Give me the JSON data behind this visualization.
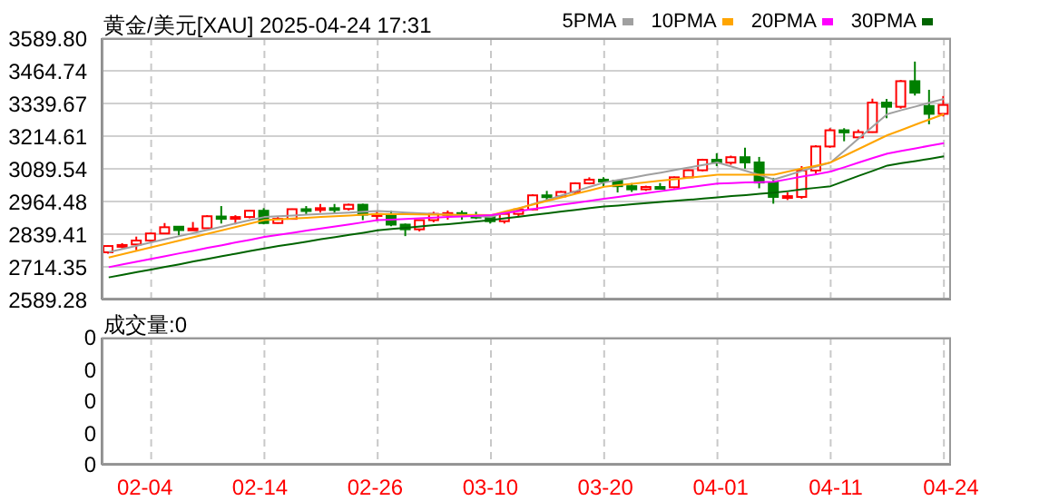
{
  "chart_data": [
    {
      "type": "candlestick",
      "title": "黄金/美元[XAU] 2025-04-24 17:31",
      "categories": [
        null,
        null,
        null,
        null,
        null,
        null,
        null,
        null,
        null,
        null,
        null,
        null,
        null,
        null,
        null,
        null,
        null,
        null,
        null,
        null,
        null,
        null,
        null,
        null,
        null,
        null,
        null,
        null,
        null,
        null,
        null,
        null,
        null,
        null,
        null,
        null,
        null,
        null,
        null,
        null,
        null,
        null,
        null,
        null,
        null,
        null,
        null,
        null,
        null,
        null,
        null,
        null,
        null,
        null,
        null,
        null,
        null,
        null,
        null,
        null
      ],
      "ohlc": [
        [
          2770,
          2796,
          2765,
          2794
        ],
        [
          2795,
          2805,
          2785,
          2798
        ],
        [
          2800,
          2830,
          2778,
          2815
        ],
        [
          2815,
          2845,
          2810,
          2842
        ],
        [
          2842,
          2882,
          2840,
          2866
        ],
        [
          2868,
          2870,
          2835,
          2855
        ],
        [
          2856,
          2886,
          2855,
          2861
        ],
        [
          2862,
          2912,
          2860,
          2908
        ],
        [
          2907,
          2947,
          2880,
          2898
        ],
        [
          2898,
          2912,
          2877,
          2905
        ],
        [
          2905,
          2931,
          2900,
          2929
        ],
        [
          2929,
          2939,
          2877,
          2882
        ],
        [
          2882,
          2905,
          2880,
          2898
        ],
        [
          2898,
          2937,
          2895,
          2935
        ],
        [
          2935,
          2947,
          2915,
          2933
        ],
        [
          2933,
          2955,
          2922,
          2939
        ],
        [
          2939,
          2955,
          2918,
          2936
        ],
        [
          2936,
          2956,
          2930,
          2952
        ],
        [
          2952,
          2956,
          2893,
          2914
        ],
        [
          2914,
          2930,
          2890,
          2916
        ],
        [
          2916,
          2930,
          2870,
          2876
        ],
        [
          2876,
          2880,
          2832,
          2858
        ],
        [
          2858,
          2895,
          2850,
          2893
        ],
        [
          2893,
          2925,
          2885,
          2917
        ],
        [
          2917,
          2930,
          2895,
          2920
        ],
        [
          2920,
          2930,
          2895,
          2910
        ],
        [
          2910,
          2925,
          2897,
          2908
        ],
        [
          2910,
          2915,
          2880,
          2889
        ],
        [
          2889,
          2920,
          2880,
          2917
        ],
        [
          2917,
          2940,
          2905,
          2934
        ],
        [
          2934,
          2992,
          2930,
          2988
        ],
        [
          2988,
          3005,
          2970,
          2984
        ],
        [
          2984,
          3005,
          2980,
          3001
        ],
        [
          3001,
          3038,
          2995,
          3034
        ],
        [
          3034,
          3057,
          3030,
          3048
        ],
        [
          3048,
          3057,
          3022,
          3044
        ],
        [
          3044,
          3048,
          2999,
          3023
        ],
        [
          3023,
          3035,
          3001,
          3011
        ],
        [
          3011,
          3025,
          3005,
          3020
        ],
        [
          3020,
          3035,
          3010,
          3019
        ],
        [
          3019,
          3060,
          3015,
          3057
        ],
        [
          3057,
          3087,
          3055,
          3084
        ],
        [
          3084,
          3128,
          3080,
          3124
        ],
        [
          3124,
          3149,
          3100,
          3113
        ],
        [
          3113,
          3140,
          3105,
          3134
        ],
        [
          3134,
          3170,
          3090,
          3114
        ],
        [
          3114,
          3135,
          3015,
          3037
        ],
        [
          3037,
          3055,
          2956,
          2982
        ],
        [
          2980,
          3000,
          2970,
          2985
        ],
        [
          2982,
          3100,
          2975,
          3083
        ],
        [
          3083,
          3180,
          3070,
          3175
        ],
        [
          3175,
          3245,
          3170,
          3237
        ],
        [
          3237,
          3245,
          3195,
          3229
        ],
        [
          3210,
          3240,
          3205,
          3230
        ],
        [
          3230,
          3358,
          3228,
          3343
        ],
        [
          3343,
          3357,
          3283,
          3327
        ],
        [
          3327,
          3430,
          3320,
          3425
        ],
        [
          3425,
          3500,
          3370,
          3381
        ],
        [
          3330,
          3392,
          3260,
          3300
        ],
        [
          3300,
          3368,
          3290,
          3334
        ]
      ],
      "colors": [
        "#ff0000",
        "#ff0000",
        "#ff0000",
        "#ff0000",
        "#ff0000",
        "#008000",
        "#ff0000",
        "#ff0000",
        "#008000",
        "#ff0000",
        "#ff0000",
        "#008000",
        "#ff0000",
        "#ff0000",
        "#008000",
        "#ff0000",
        "#008000",
        "#ff0000",
        "#008000",
        "#ff0000",
        "#008000",
        "#008000",
        "#ff0000",
        "#ff0000",
        "#ff0000",
        "#008000",
        "#008000",
        "#008000",
        "#ff0000",
        "#ff0000",
        "#ff0000",
        "#008000",
        "#ff0000",
        "#ff0000",
        "#ff0000",
        "#008000",
        "#008000",
        "#008000",
        "#ff0000",
        "#008000",
        "#ff0000",
        "#ff0000",
        "#ff0000",
        "#008000",
        "#ff0000",
        "#008000",
        "#008000",
        "#008000",
        "#ff0000",
        "#ff0000",
        "#ff0000",
        "#ff0000",
        "#008000",
        "#ff0000",
        "#ff0000",
        "#008000",
        "#ff0000",
        "#008000",
        "#008000",
        "#ff0000"
      ],
      "series": [
        {
          "name": "5PMA",
          "type": "line",
          "color": "#a0a0a0",
          "values": [
            2771,
            2783,
            2795,
            2808,
            2820,
            2832,
            2844,
            2856,
            2868,
            2881,
            2893,
            2905,
            2908,
            2911,
            2914,
            2917,
            2919,
            2922,
            2925,
            2928,
            2925,
            2922,
            2919,
            2917,
            2914,
            2911,
            2908,
            2905,
            2922,
            2938,
            2955,
            2971,
            2988,
            3004,
            3021,
            3037,
            3047,
            3056,
            3066,
            3075,
            3085,
            3095,
            3104,
            3114,
            3098,
            3082,
            3065,
            3049,
            3065,
            3082,
            3098,
            3114,
            3160,
            3207,
            3253,
            3299,
            3314,
            3328,
            3343,
            3357
          ]
        },
        {
          "name": "10PMA",
          "type": "line",
          "color": "#ffa500",
          "values": [
            2750,
            2763,
            2776,
            2789,
            2802,
            2815,
            2828,
            2841,
            2854,
            2867,
            2880,
            2893,
            2896,
            2899,
            2902,
            2905,
            2908,
            2911,
            2914,
            2917,
            2916,
            2916,
            2915,
            2914,
            2914,
            2913,
            2913,
            2912,
            2926,
            2939,
            2953,
            2967,
            2980,
            2994,
            3007,
            3021,
            3027,
            3032,
            3038,
            3044,
            3050,
            3056,
            3061,
            3067,
            3067,
            3067,
            3067,
            3067,
            3079,
            3091,
            3102,
            3114,
            3140,
            3166,
            3192,
            3218,
            3238,
            3259,
            3279,
            3299
          ]
        },
        {
          "name": "20PMA",
          "type": "line",
          "color": "#ff00ff",
          "values": [
            2713,
            2724,
            2734,
            2745,
            2755,
            2766,
            2776,
            2787,
            2797,
            2808,
            2818,
            2829,
            2837,
            2845,
            2853,
            2861,
            2869,
            2877,
            2885,
            2893,
            2895,
            2898,
            2900,
            2903,
            2905,
            2907,
            2910,
            2912,
            2920,
            2928,
            2936,
            2944,
            2952,
            2959,
            2967,
            2975,
            2982,
            2990,
            2997,
            3004,
            3011,
            3019,
            3026,
            3033,
            3035,
            3037,
            3038,
            3040,
            3050,
            3060,
            3069,
            3079,
            3096,
            3114,
            3131,
            3148,
            3158,
            3168,
            3178,
            3188
          ]
        },
        {
          "name": "30PMA",
          "type": "line",
          "color": "#006400",
          "values": [
            2674,
            2684,
            2694,
            2704,
            2714,
            2724,
            2735,
            2745,
            2755,
            2765,
            2775,
            2785,
            2794,
            2802,
            2811,
            2820,
            2828,
            2837,
            2845,
            2854,
            2859,
            2864,
            2869,
            2874,
            2878,
            2883,
            2888,
            2893,
            2900,
            2906,
            2913,
            2919,
            2926,
            2932,
            2939,
            2945,
            2949,
            2954,
            2958,
            2963,
            2967,
            2971,
            2976,
            2980,
            2985,
            2989,
            2994,
            2998,
            3004,
            3011,
            3017,
            3023,
            3043,
            3063,
            3082,
            3102,
            3111,
            3119,
            3128,
            3137
          ]
        }
      ],
      "ylim": [
        2589.28,
        3589.8
      ],
      "yticks": [
        {
          "value": 2589.28,
          "label": "2589.28"
        },
        {
          "value": 2714.35,
          "label": "2714.35"
        },
        {
          "value": 2839.41,
          "label": "2839.41"
        },
        {
          "value": 2964.48,
          "label": "2964.48"
        },
        {
          "value": 3089.54,
          "label": "3089.54"
        },
        {
          "value": 3214.61,
          "label": "3214.61"
        },
        {
          "value": 3339.67,
          "label": "3339.67"
        },
        {
          "value": 3464.74,
          "label": "3464.74"
        },
        {
          "value": 3589.8,
          "label": "3589.80"
        }
      ],
      "grid": true,
      "legend": "top right",
      "tick_labels": "y",
      "marker": "none",
      "line_style": "solid"
    },
    {
      "type": "other",
      "title": "成交量:0",
      "categories": [
        null,
        null,
        null,
        "02-04",
        null,
        null,
        null,
        null,
        null,
        null,
        null,
        "02-14",
        null,
        null,
        null,
        null,
        null,
        null,
        null,
        "02-26",
        null,
        null,
        null,
        null,
        null,
        null,
        null,
        "03-10",
        null,
        null,
        null,
        null,
        null,
        null,
        null,
        "03-20",
        null,
        null,
        null,
        null,
        null,
        null,
        null,
        "04-01",
        null,
        null,
        null,
        null,
        null,
        null,
        null,
        "04-11",
        null,
        null,
        null,
        null,
        null,
        null,
        null,
        "04-24"
      ],
      "annotations": [
        "0",
        "0",
        "0",
        "0",
        "0"
      ]
    }
  ]
}
